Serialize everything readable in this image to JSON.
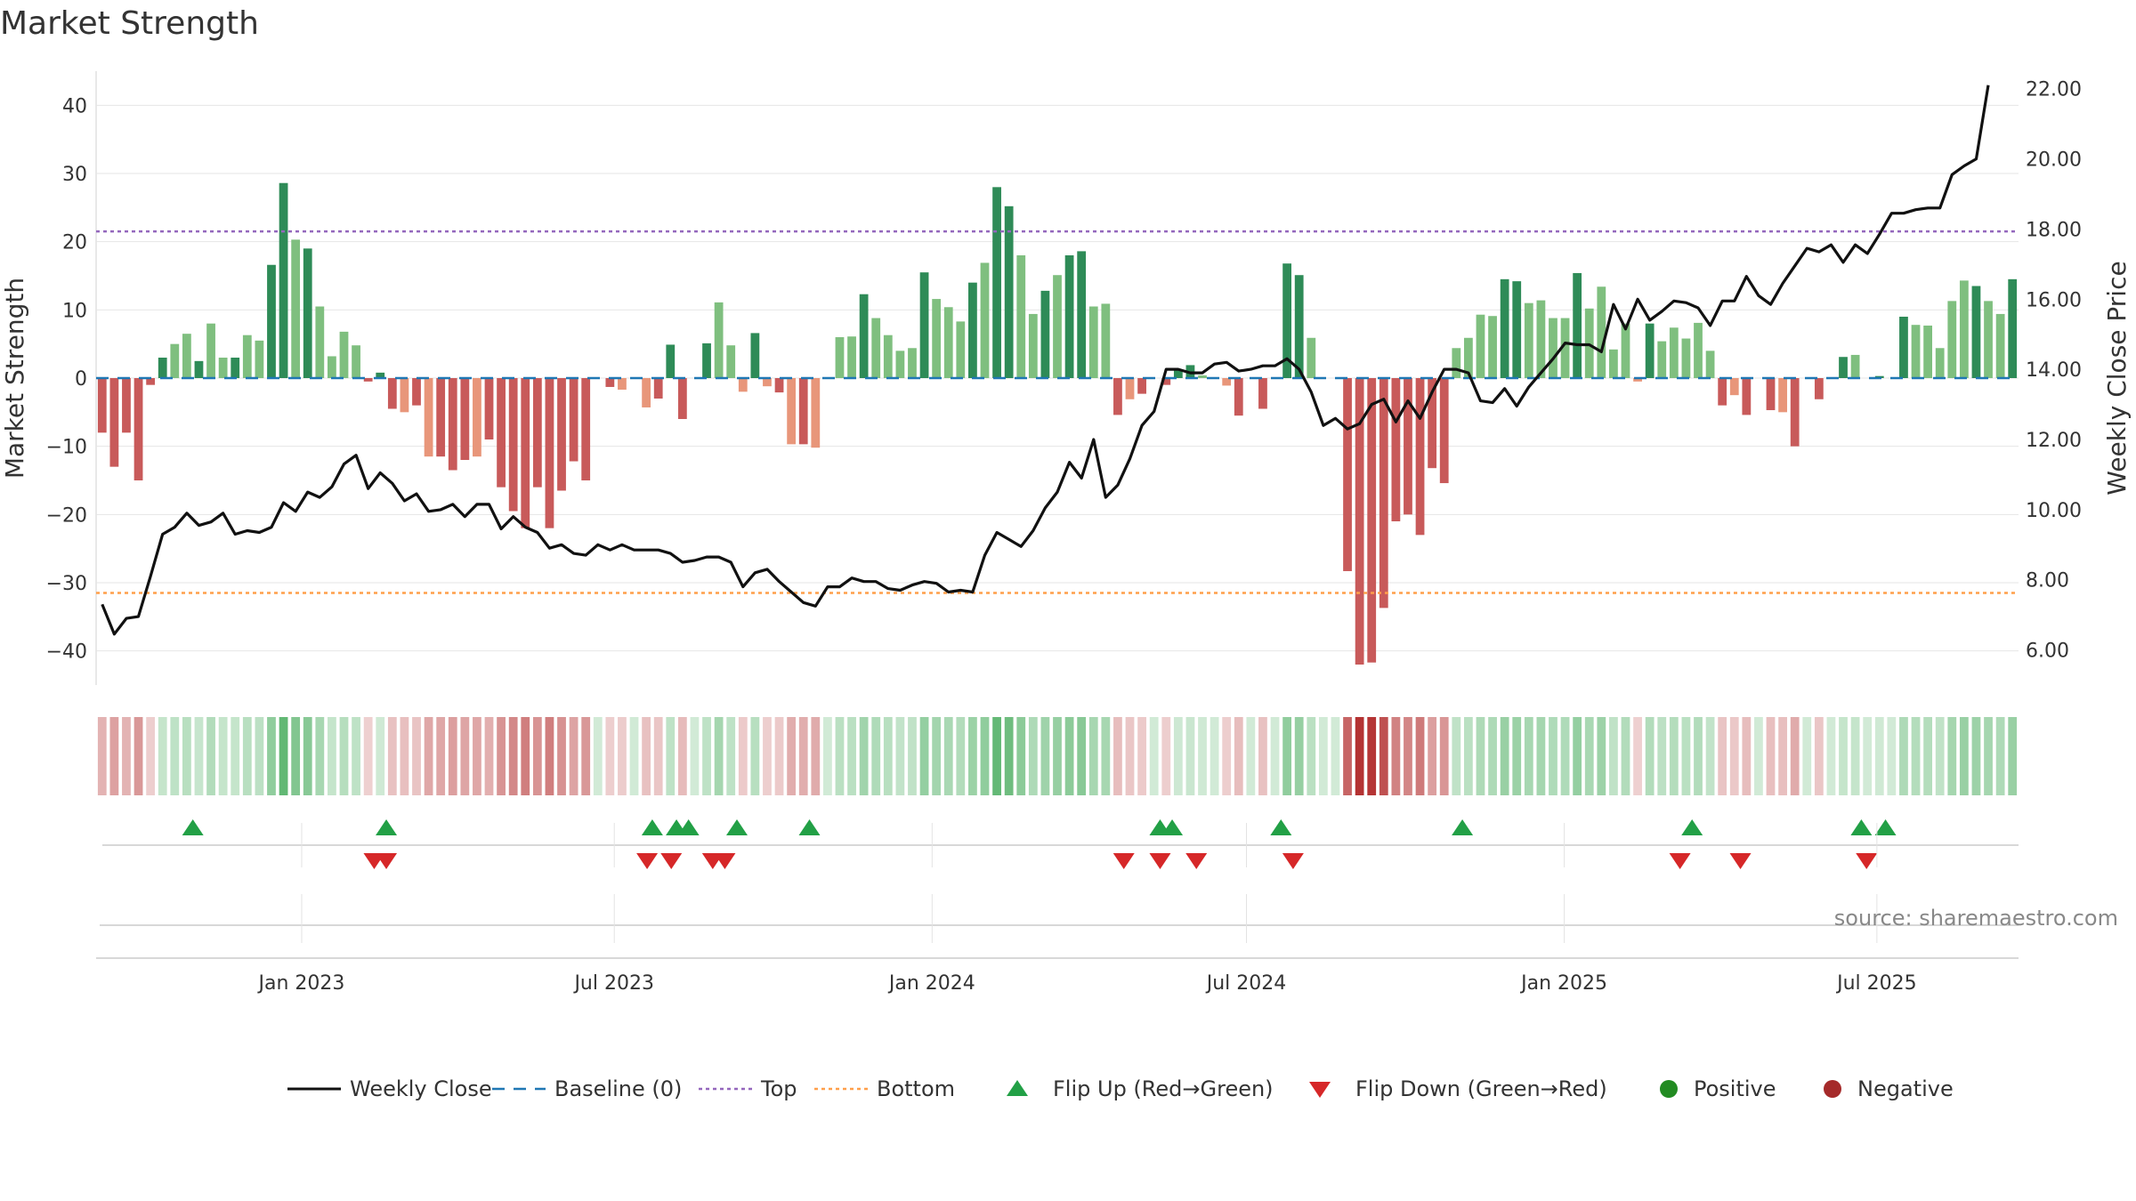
{
  "title": "Market Strength",
  "source_text": "source: sharemaestro.com",
  "colors": {
    "pos_strong": "#2e8b57",
    "pos_light": "#7fbf7f",
    "neg_strong": "#c85a5a",
    "neg_light": "#e8967a",
    "close_line": "#111111",
    "baseline": "#1f77b4",
    "top": "#9467bd",
    "bottom": "#ff9f4a",
    "flip_up": "#22a046",
    "flip_down": "#d62728",
    "positive_dot": "#228b22",
    "negative_dot": "#a52a2a",
    "grid": "#e6e6e6"
  },
  "legend": [
    {
      "key": "close",
      "label": "Weekly Close"
    },
    {
      "key": "baseline",
      "label": "Baseline (0)"
    },
    {
      "key": "top",
      "label": "Top"
    },
    {
      "key": "bottom",
      "label": "Bottom"
    },
    {
      "key": "flipup",
      "label": "Flip Up (Red→Green)"
    },
    {
      "key": "flipdown",
      "label": "Flip Down (Green→Red)"
    },
    {
      "key": "positive",
      "label": "Positive"
    },
    {
      "key": "negative",
      "label": "Negative"
    }
  ],
  "chart_data": {
    "type": "bar",
    "ylabel": "Market Strength",
    "y2label": "Weekly Close Price",
    "ylim": [
      -45,
      45
    ],
    "y2lim": [
      5.0,
      22.5
    ],
    "yticks": [
      40,
      30,
      20,
      10,
      0,
      -10,
      -20,
      -30,
      -40
    ],
    "ytick_labels": [
      "40",
      "30",
      "20",
      "10",
      "0",
      "−10",
      "−20",
      "−30",
      "−40"
    ],
    "y2ticks": [
      22,
      20,
      18,
      16,
      14,
      12,
      10,
      8,
      6
    ],
    "y2tick_labels": [
      "22.00",
      "20.00",
      "18.00",
      "16.00",
      "14.00",
      "12.00",
      "10.00",
      "8.00",
      "6.00"
    ],
    "x_start": "2022-09-04",
    "x_end": "2025-09-21",
    "xtick_dates": [
      "2023-01-01",
      "2023-07-01",
      "2024-01-01",
      "2024-07-01",
      "2025-01-01",
      "2025-07-01"
    ],
    "xtick_labels": [
      "Jan 2023",
      "Jul 2023",
      "Jan 2024",
      "Jul 2024",
      "Jan 2025",
      "Jul 2025"
    ],
    "top_level": 21.5,
    "bottom_level": -31.5,
    "baseline": 0,
    "grid": true,
    "legend_position": "bottom",
    "series": [
      {
        "name": "Market Strength",
        "values": [
          -8,
          -13,
          -8,
          -15,
          -1,
          3,
          5,
          6.5,
          2.5,
          8,
          3,
          3,
          6.3,
          5.5,
          16.6,
          28.6,
          20.3,
          19,
          10.5,
          3.2,
          6.8,
          4.8,
          -0.5,
          0.8,
          -4.5,
          -5,
          -4,
          -11.5,
          -11.5,
          -13.5,
          -12,
          -11.5,
          -9,
          -16,
          -19.5,
          -22,
          -16,
          -22,
          -16.5,
          -12.2,
          -15,
          0,
          -1.3,
          -1.7,
          0,
          -4.3,
          -3,
          4.9,
          -6,
          0,
          5.1,
          11.1,
          4.8,
          -2,
          6.6,
          -1.2,
          -2.1,
          -9.7,
          -9.7,
          -10.2,
          0,
          6,
          6.1,
          12.3,
          8.8,
          6.3,
          4,
          4.4,
          15.5,
          11.6,
          10.4,
          8.3,
          14,
          16.9,
          28,
          25.2,
          18,
          9.4,
          12.8,
          15.1,
          18,
          18.6,
          10.5,
          10.9,
          -5.4,
          -3.1,
          -2.3,
          0,
          -1,
          1.2,
          1.9,
          0.4,
          0,
          -1.1,
          -5.5,
          0,
          -4.5,
          0,
          16.8,
          15.1,
          5.9,
          0,
          0,
          -28.3,
          -42,
          -41.7,
          -33.7,
          -21,
          -20,
          -23,
          -13.2,
          -15.4,
          4.4,
          5.9,
          9.3,
          9.1,
          14.5,
          14.2,
          11,
          11.4,
          8.8,
          8.8,
          15.4,
          10.2,
          13.4,
          4.2,
          8,
          -0.5,
          8,
          5.4,
          7.4,
          5.8,
          8.1,
          4,
          -4,
          -2.5,
          -5.4,
          0,
          -4.7,
          -5,
          -10,
          0,
          -3.1,
          0,
          3.1,
          3.4,
          0,
          0.3,
          0,
          9,
          7.8,
          7.7,
          4.4,
          11.3,
          14.3,
          13.5,
          11.3,
          9.4,
          14.5
        ]
      },
      {
        "name": "Weekly Close",
        "values": [
          7.3,
          6.45,
          6.9,
          6.95,
          8.1,
          9.3,
          9.5,
          9.9,
          9.55,
          9.65,
          9.9,
          9.3,
          9.4,
          9.35,
          9.5,
          10.2,
          9.95,
          10.5,
          10.35,
          10.65,
          11.3,
          11.55,
          10.6,
          11.05,
          10.75,
          10.25,
          10.45,
          9.95,
          10.0,
          10.15,
          9.8,
          10.15,
          10.15,
          9.45,
          9.8,
          9.5,
          9.35,
          8.9,
          9.0,
          8.75,
          8.7,
          9.0,
          8.85,
          9.0,
          8.85,
          8.85,
          8.85,
          8.75,
          8.5,
          8.55,
          8.65,
          8.65,
          8.5,
          7.8,
          8.2,
          8.3,
          7.95,
          7.65,
          7.35,
          7.25,
          7.8,
          7.8,
          8.05,
          7.95,
          7.95,
          7.75,
          7.7,
          7.85,
          7.95,
          7.9,
          7.65,
          7.7,
          7.65,
          8.7,
          9.35,
          9.15,
          8.95,
          9.4,
          10.05,
          10.5,
          11.35,
          10.9,
          12.0,
          10.35,
          10.7,
          11.45,
          12.4,
          12.8,
          14.0,
          14.0,
          13.9,
          13.9,
          14.15,
          14.2,
          13.95,
          14.0,
          14.1,
          14.1,
          14.3,
          14.0,
          13.35,
          12.4,
          12.6,
          12.3,
          12.45,
          13.0,
          13.15,
          12.5,
          13.1,
          12.6,
          13.35,
          14.0,
          14.0,
          13.9,
          13.1,
          13.05,
          13.45,
          12.95,
          13.5,
          13.9,
          14.3,
          14.75,
          14.7,
          14.7,
          14.5,
          15.85,
          15.15,
          16.0,
          15.4,
          15.65,
          15.95,
          15.9,
          15.75,
          15.25,
          15.95,
          15.95,
          16.65,
          16.1,
          15.85,
          16.45,
          16.95,
          17.45,
          17.35,
          17.55,
          17.05,
          17.55,
          17.3,
          17.85,
          18.45,
          18.45,
          18.55,
          18.6,
          18.6,
          19.55,
          19.8,
          20.0,
          22.1
        ]
      }
    ],
    "flip_up_dates": [
      "2022-10-30",
      "2023-02-19",
      "2023-07-23",
      "2023-08-06",
      "2023-08-13",
      "2023-09-10",
      "2023-10-22",
      "2024-05-12",
      "2024-05-19",
      "2024-07-21",
      "2024-11-03",
      "2025-03-16",
      "2025-06-22",
      "2025-07-06"
    ],
    "flip_down_dates": [
      "2023-02-12",
      "2023-02-19",
      "2023-07-20",
      "2023-08-03",
      "2023-08-27",
      "2023-09-03",
      "2024-04-21",
      "2024-05-12",
      "2024-06-02",
      "2024-07-28",
      "2025-03-09",
      "2025-04-13",
      "2025-06-25"
    ]
  }
}
